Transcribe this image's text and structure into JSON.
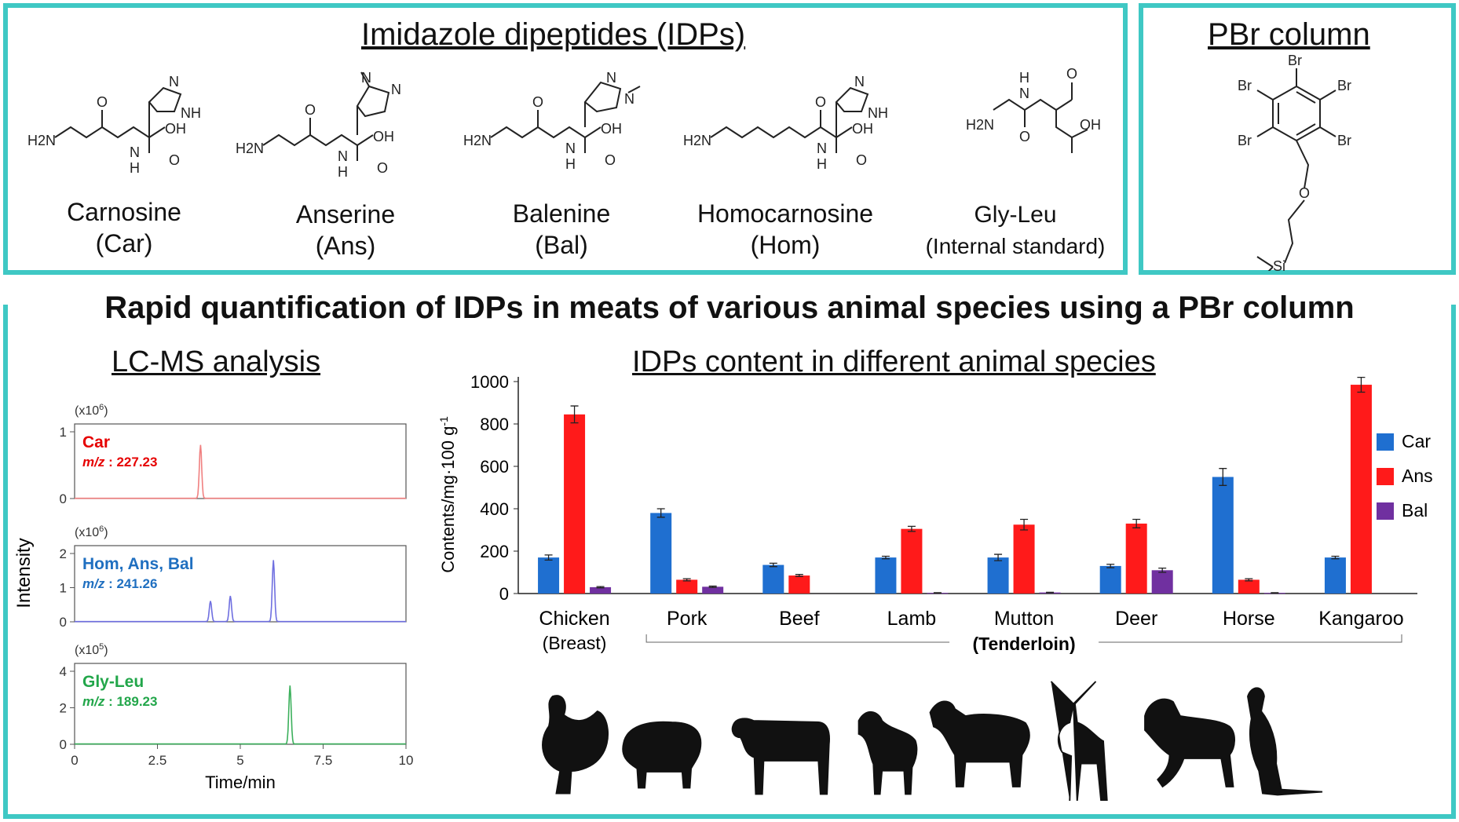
{
  "idp_panel": {
    "title": "Imidazole dipeptides (IDPs)",
    "molecules": [
      {
        "name": "Carnosine",
        "abbr": "(Car)"
      },
      {
        "name": "Anserine",
        "abbr": "(Ans)"
      },
      {
        "name": "Balenine",
        "abbr": "(Bal)"
      },
      {
        "name": "Homocarnosine",
        "abbr": "(Hom)"
      },
      {
        "name": "Gly-Leu",
        "abbr": "(Internal standard)"
      }
    ],
    "atoms": {
      "h2n": "H2N",
      "n": "N",
      "h": "H",
      "o": "O",
      "oh": "OH",
      "nh": "NH"
    }
  },
  "pbr_panel": {
    "title": "PBr column",
    "atoms": {
      "br": "Br",
      "o": "O",
      "si": "Si"
    }
  },
  "main_title": "Rapid quantification of IDPs in meats of various animal species using a PBr column",
  "lcms": {
    "title": "LC-MS analysis",
    "ylabel": "Intensity",
    "xlabel": "Time/min",
    "x_ticks": [
      "0",
      "2.5",
      "5",
      "7.5",
      "10"
    ],
    "panels": [
      {
        "label": "Car",
        "mz": "227.23",
        "scale": "(x10",
        "exp": "6",
        "yticks": [
          "0",
          "1"
        ],
        "color": "#e60000",
        "line": "#f08080"
      },
      {
        "label": "Hom, Ans,  Bal",
        "mz": "241.26",
        "scale": "(x10",
        "exp": "6",
        "yticks": [
          "0",
          "1",
          "2"
        ],
        "color": "#1f6fc0",
        "line": "#6f6fe0"
      },
      {
        "label": "Gly-Leu",
        "mz": "189.23",
        "scale": "(x10",
        "exp": "5",
        "yticks": [
          "0",
          "2",
          "4"
        ],
        "color": "#22a64a",
        "line": "#3cb05c"
      }
    ],
    "mz_prefix": "m/z"
  },
  "bar_chart": {
    "title": "IDPs content in different animal species",
    "ylabel": "Contents/mg·100 g",
    "ylabel_sup": "-1",
    "group_label": "(Tenderloin)"
  },
  "chart_data": [
    {
      "type": "bar",
      "title": "IDPs content in different animal species",
      "ylabel": "Contents/mg·100 g-1",
      "ylim": [
        0,
        1000
      ],
      "yticks": [
        0,
        200,
        400,
        600,
        800,
        1000
      ],
      "categories": [
        "Chicken",
        "Pork",
        "Beef",
        "Lamb",
        "Mutton",
        "Deer",
        "Horse",
        "Kangaroo"
      ],
      "category_sublabels": [
        "(Breast)",
        "",
        "",
        "",
        "",
        "",
        "",
        ""
      ],
      "series": [
        {
          "name": "Car",
          "color": "#1f6fd0",
          "values": [
            170,
            380,
            135,
            170,
            170,
            130,
            550,
            170
          ],
          "errors": [
            12,
            20,
            8,
            6,
            15,
            8,
            40,
            6
          ]
        },
        {
          "name": "Ans",
          "color": "#ff1a1a",
          "values": [
            845,
            65,
            85,
            305,
            325,
            330,
            65,
            985
          ],
          "errors": [
            40,
            5,
            5,
            12,
            25,
            20,
            5,
            35
          ]
        },
        {
          "name": "Bal",
          "color": "#7030a0",
          "values": [
            30,
            32,
            0,
            3,
            5,
            110,
            3,
            0
          ],
          "errors": [
            3,
            3,
            0,
            1,
            1,
            10,
            1,
            0
          ]
        }
      ],
      "legend": "right"
    },
    {
      "type": "line",
      "title": "LC-MS analysis",
      "xlabel": "Time/min",
      "ylabel": "Intensity",
      "xlim": [
        0,
        10
      ],
      "series": [
        {
          "name": "Car",
          "ylim": [
            0,
            1
          ],
          "peaks": [
            {
              "x": 3.8,
              "y": 0.8
            }
          ]
        },
        {
          "name": "Hom, Ans,  Bal",
          "ylim": [
            0,
            2
          ],
          "peaks": [
            {
              "x": 4.1,
              "y": 0.6
            },
            {
              "x": 4.7,
              "y": 0.75
            },
            {
              "x": 6.0,
              "y": 1.8
            }
          ]
        },
        {
          "name": "Gly-Leu",
          "ylim": [
            0,
            4
          ],
          "peaks": [
            {
              "x": 6.5,
              "y": 3.2
            }
          ]
        }
      ]
    }
  ],
  "animals": [
    "rooster-silhouette",
    "pig-silhouette",
    "cow-silhouette",
    "lamb-silhouette",
    "sheep-silhouette",
    "deer-silhouette",
    "horse-silhouette",
    "kangaroo-silhouette"
  ]
}
